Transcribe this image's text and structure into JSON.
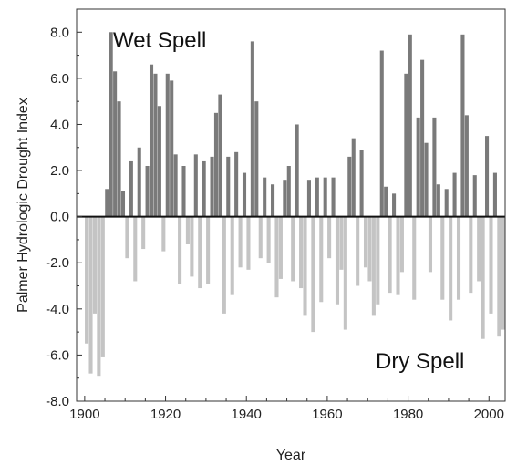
{
  "chart_data": {
    "type": "bar",
    "title": "",
    "xlabel": "Year",
    "ylabel": "Palmer Hydrologic Drought Index",
    "xlim": [
      1898,
      2004
    ],
    "ylim": [
      -8.0,
      9.0
    ],
    "x_ticks": [
      1900,
      1920,
      1940,
      1960,
      1980,
      2000
    ],
    "x_tick_labels": [
      "1900",
      "1920",
      "1940",
      "1960",
      "1980",
      "2000"
    ],
    "y_ticks": [
      8.0,
      6.0,
      4.0,
      2.0,
      0.0,
      -2.0,
      -4.0,
      -6.0,
      -8.0
    ],
    "y_tick_labels": [
      "8.0",
      "6.0",
      "4.0",
      "2.0",
      "0.0",
      "-2.0",
      "-4.0",
      "-6.0",
      "-8.0"
    ],
    "grid": false,
    "annotations": [
      {
        "text": "Wet Spell",
        "position": "top-left"
      },
      {
        "text": "Dry Spell",
        "position": "bottom-right"
      }
    ],
    "colors": {
      "wet": "#7a7a7a",
      "dry": "#c4c4c4",
      "zero_line": "#111111"
    },
    "series": [
      {
        "x": [
          1900,
          1901,
          1902,
          1903,
          1904,
          1905,
          1906,
          1907,
          1908,
          1909,
          1910,
          1911,
          1912,
          1913,
          1914,
          1915,
          1916,
          1917,
          1918,
          1919,
          1920,
          1921,
          1922,
          1923,
          1924,
          1925,
          1926,
          1927,
          1928,
          1929,
          1930,
          1931,
          1932,
          1933,
          1934,
          1935,
          1936,
          1937,
          1938,
          1939,
          1940,
          1941,
          1942,
          1943,
          1944,
          1945,
          1946,
          1947,
          1948,
          1949,
          1950,
          1951,
          1952,
          1953,
          1954,
          1955,
          1956,
          1957,
          1958,
          1959,
          1960,
          1961,
          1962,
          1963,
          1964,
          1965,
          1966,
          1967,
          1968,
          1969,
          1970,
          1971,
          1972,
          1973,
          1974,
          1975,
          1976,
          1977,
          1978,
          1979,
          1980,
          1981,
          1982,
          1983,
          1984,
          1985,
          1986,
          1987,
          1988,
          1989,
          1990,
          1991,
          1992,
          1993,
          1994,
          1995,
          1996,
          1997,
          1998,
          1999,
          2000,
          2001,
          2002,
          2003
        ],
        "values": [
          -5.5,
          -6.8,
          -4.2,
          -6.9,
          -6.1,
          1.2,
          8.0,
          6.3,
          5.0,
          1.1,
          -1.8,
          2.4,
          -2.8,
          3.0,
          -1.4,
          2.2,
          6.6,
          6.2,
          4.8,
          -1.5,
          6.2,
          5.9,
          2.7,
          -2.9,
          2.2,
          -1.2,
          -2.6,
          2.7,
          -3.1,
          2.4,
          -2.9,
          2.6,
          4.5,
          5.3,
          -4.2,
          2.6,
          -3.4,
          2.8,
          -2.2,
          1.9,
          -2.3,
          7.6,
          5.0,
          -1.8,
          1.7,
          -2.0,
          1.4,
          -3.5,
          -2.7,
          1.6,
          2.2,
          -2.8,
          4.0,
          -3.1,
          -4.3,
          1.6,
          -5.0,
          1.7,
          -3.7,
          1.7,
          -1.8,
          1.7,
          -3.8,
          -2.3,
          -4.9,
          2.6,
          3.4,
          -3.0,
          2.9,
          -2.2,
          -2.8,
          -4.3,
          -3.8,
          7.2,
          1.3,
          -3.3,
          1.0,
          -3.4,
          -2.4,
          6.2,
          7.9,
          -3.6,
          4.3,
          6.8,
          3.2,
          -2.4,
          4.3,
          1.4,
          -3.6,
          1.2,
          -4.5,
          1.9,
          -3.6,
          7.9,
          4.4,
          -3.3,
          1.8,
          -2.8,
          -5.3,
          3.5,
          -4.2,
          1.9,
          -5.2,
          -4.9
        ]
      }
    ]
  }
}
